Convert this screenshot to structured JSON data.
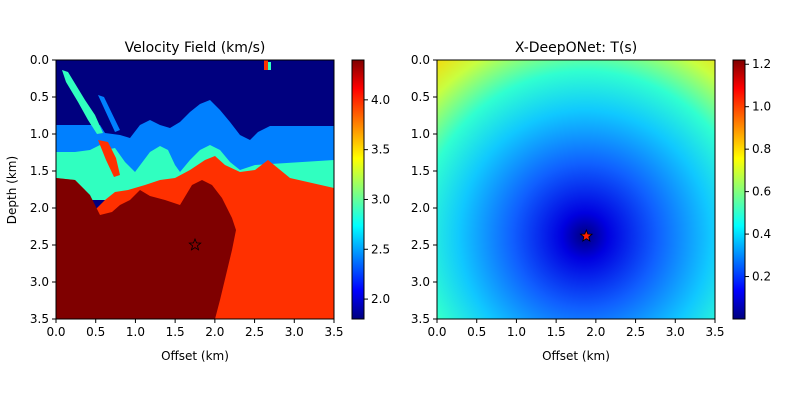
{
  "chart_data": [
    {
      "type": "heatmap",
      "title": "Velocity Field (km/s)",
      "xlabel": "Offset (km)",
      "ylabel": "Depth (km)",
      "xlim": [
        0.0,
        3.5
      ],
      "ylim": [
        3.5,
        0.0
      ],
      "xticks": [
        "0.0",
        "0.5",
        "1.0",
        "1.5",
        "2.0",
        "2.5",
        "3.0",
        "3.5"
      ],
      "yticks": [
        "0.0",
        "0.5",
        "1.0",
        "1.5",
        "2.0",
        "2.5",
        "3.0",
        "3.5"
      ],
      "colormap": "jet",
      "colorbar": {
        "min": 1.8,
        "max": 4.4,
        "ticks": [
          "2.0",
          "2.5",
          "3.0",
          "3.5",
          "4.0"
        ]
      },
      "layers": [
        {
          "name": "layer-1",
          "velocity": 1.8,
          "depth_range": [
            0.0,
            0.9
          ]
        },
        {
          "name": "layer-2",
          "velocity": 2.7,
          "depth_range": [
            0.9,
            1.3
          ]
        },
        {
          "name": "layer-3",
          "velocity": 3.3,
          "depth_range": [
            1.3,
            1.6
          ]
        },
        {
          "name": "layer-4",
          "velocity": 4.1,
          "depth_range": [
            1.6,
            3.5
          ]
        },
        {
          "name": "layer-5",
          "velocity": 4.4,
          "depth_range": [
            1.6,
            3.5
          ]
        }
      ],
      "source": {
        "x": 1.75,
        "z": 2.5,
        "marker": "star"
      }
    },
    {
      "type": "heatmap",
      "title": "X-DeepONet: T(s)",
      "xlabel": "Offset (km)",
      "ylabel": "",
      "xlim": [
        0.0,
        3.5
      ],
      "ylim": [
        3.5,
        0.0
      ],
      "xticks": [
        "0.0",
        "0.5",
        "1.0",
        "1.5",
        "2.0",
        "2.5",
        "3.0",
        "3.5"
      ],
      "yticks": [
        "0.0",
        "0.5",
        "1.0",
        "1.5",
        "2.0",
        "2.5",
        "3.0",
        "3.5"
      ],
      "colormap": "jet",
      "colorbar": {
        "min": 0.0,
        "max": 1.22,
        "ticks": [
          "0.2",
          "0.4",
          "0.6",
          "0.8",
          "1.0",
          "1.2"
        ]
      },
      "source": {
        "x": 1.88,
        "z": 2.38,
        "marker": "star"
      }
    }
  ]
}
